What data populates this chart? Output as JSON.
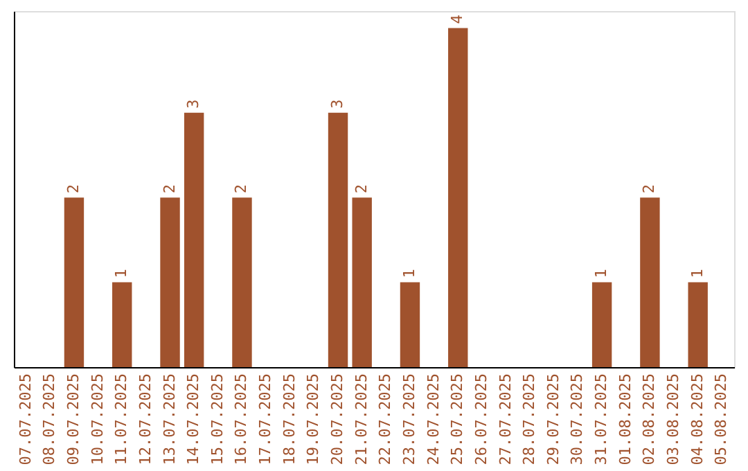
{
  "chart_data": {
    "type": "bar",
    "categories": [
      "07.07.2025",
      "08.07.2025",
      "09.07.2025",
      "10.07.2025",
      "11.07.2025",
      "12.07.2025",
      "13.07.2025",
      "14.07.2025",
      "15.07.2025",
      "16.07.2025",
      "17.07.2025",
      "18.07.2025",
      "19.07.2025",
      "20.07.2025",
      "21.07.2025",
      "22.07.2025",
      "23.07.2025",
      "24.07.2025",
      "25.07.2025",
      "26.07.2025",
      "27.07.2025",
      "28.07.2025",
      "29.07.2025",
      "30.07.2025",
      "31.07.2025",
      "01.08.2025",
      "02.08.2025",
      "03.08.2025",
      "04.08.2025",
      "05.08.2025"
    ],
    "values": [
      0,
      0,
      2,
      0,
      1,
      0,
      2,
      3,
      0,
      2,
      0,
      0,
      0,
      3,
      2,
      0,
      1,
      0,
      4,
      0,
      0,
      0,
      0,
      0,
      1,
      0,
      2,
      0,
      1,
      0
    ],
    "value_labels": [
      null,
      null,
      "2",
      null,
      "1",
      null,
      "2",
      "3",
      null,
      "2",
      null,
      null,
      null,
      "3",
      "2",
      null,
      "1",
      null,
      "4",
      null,
      null,
      null,
      null,
      null,
      "1",
      null,
      "2",
      null,
      "1",
      null
    ],
    "color": "#a0522d",
    "grid": false
  }
}
